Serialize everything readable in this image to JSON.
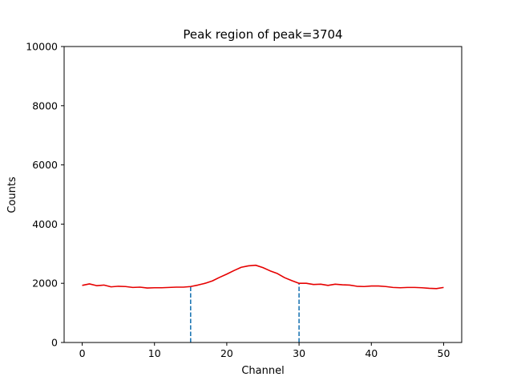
{
  "chart_data": {
    "type": "line",
    "title": "Peak region of peak=3704",
    "xlabel": "Channel",
    "ylabel": "Counts",
    "xlim": [
      -2.5,
      52.5
    ],
    "ylim": [
      0,
      10000
    ],
    "xticks": [
      0,
      10,
      20,
      30,
      40,
      50
    ],
    "yticks": [
      0,
      2000,
      4000,
      6000,
      8000,
      10000
    ],
    "grid": false,
    "series": [
      {
        "color": "#e60000",
        "x": [
          0,
          1,
          2,
          3,
          4,
          5,
          6,
          7,
          8,
          9,
          10,
          11,
          12,
          13,
          14,
          15,
          16,
          17,
          18,
          19,
          20,
          21,
          22,
          23,
          24,
          25,
          26,
          27,
          28,
          29,
          30,
          31,
          32,
          33,
          34,
          35,
          36,
          37,
          38,
          39,
          40,
          41,
          42,
          43,
          44,
          45,
          46,
          47,
          48,
          49,
          50
        ],
        "y": [
          1930,
          1980,
          1920,
          1940,
          1880,
          1900,
          1890,
          1860,
          1870,
          1840,
          1850,
          1850,
          1860,
          1870,
          1870,
          1890,
          1940,
          2000,
          2080,
          2200,
          2310,
          2430,
          2540,
          2590,
          2610,
          2530,
          2420,
          2330,
          2190,
          2090,
          2000,
          2000,
          1960,
          1970,
          1930,
          1970,
          1950,
          1940,
          1900,
          1890,
          1910,
          1910,
          1890,
          1860,
          1850,
          1860,
          1860,
          1850,
          1830,
          1820,
          1860
        ]
      }
    ],
    "vlines": [
      {
        "x": 15,
        "y_top": 1890,
        "color": "#1f77b4",
        "style": "dashed"
      },
      {
        "x": 30,
        "y_top": 2000,
        "color": "#1f77b4",
        "style": "dashed"
      }
    ]
  }
}
